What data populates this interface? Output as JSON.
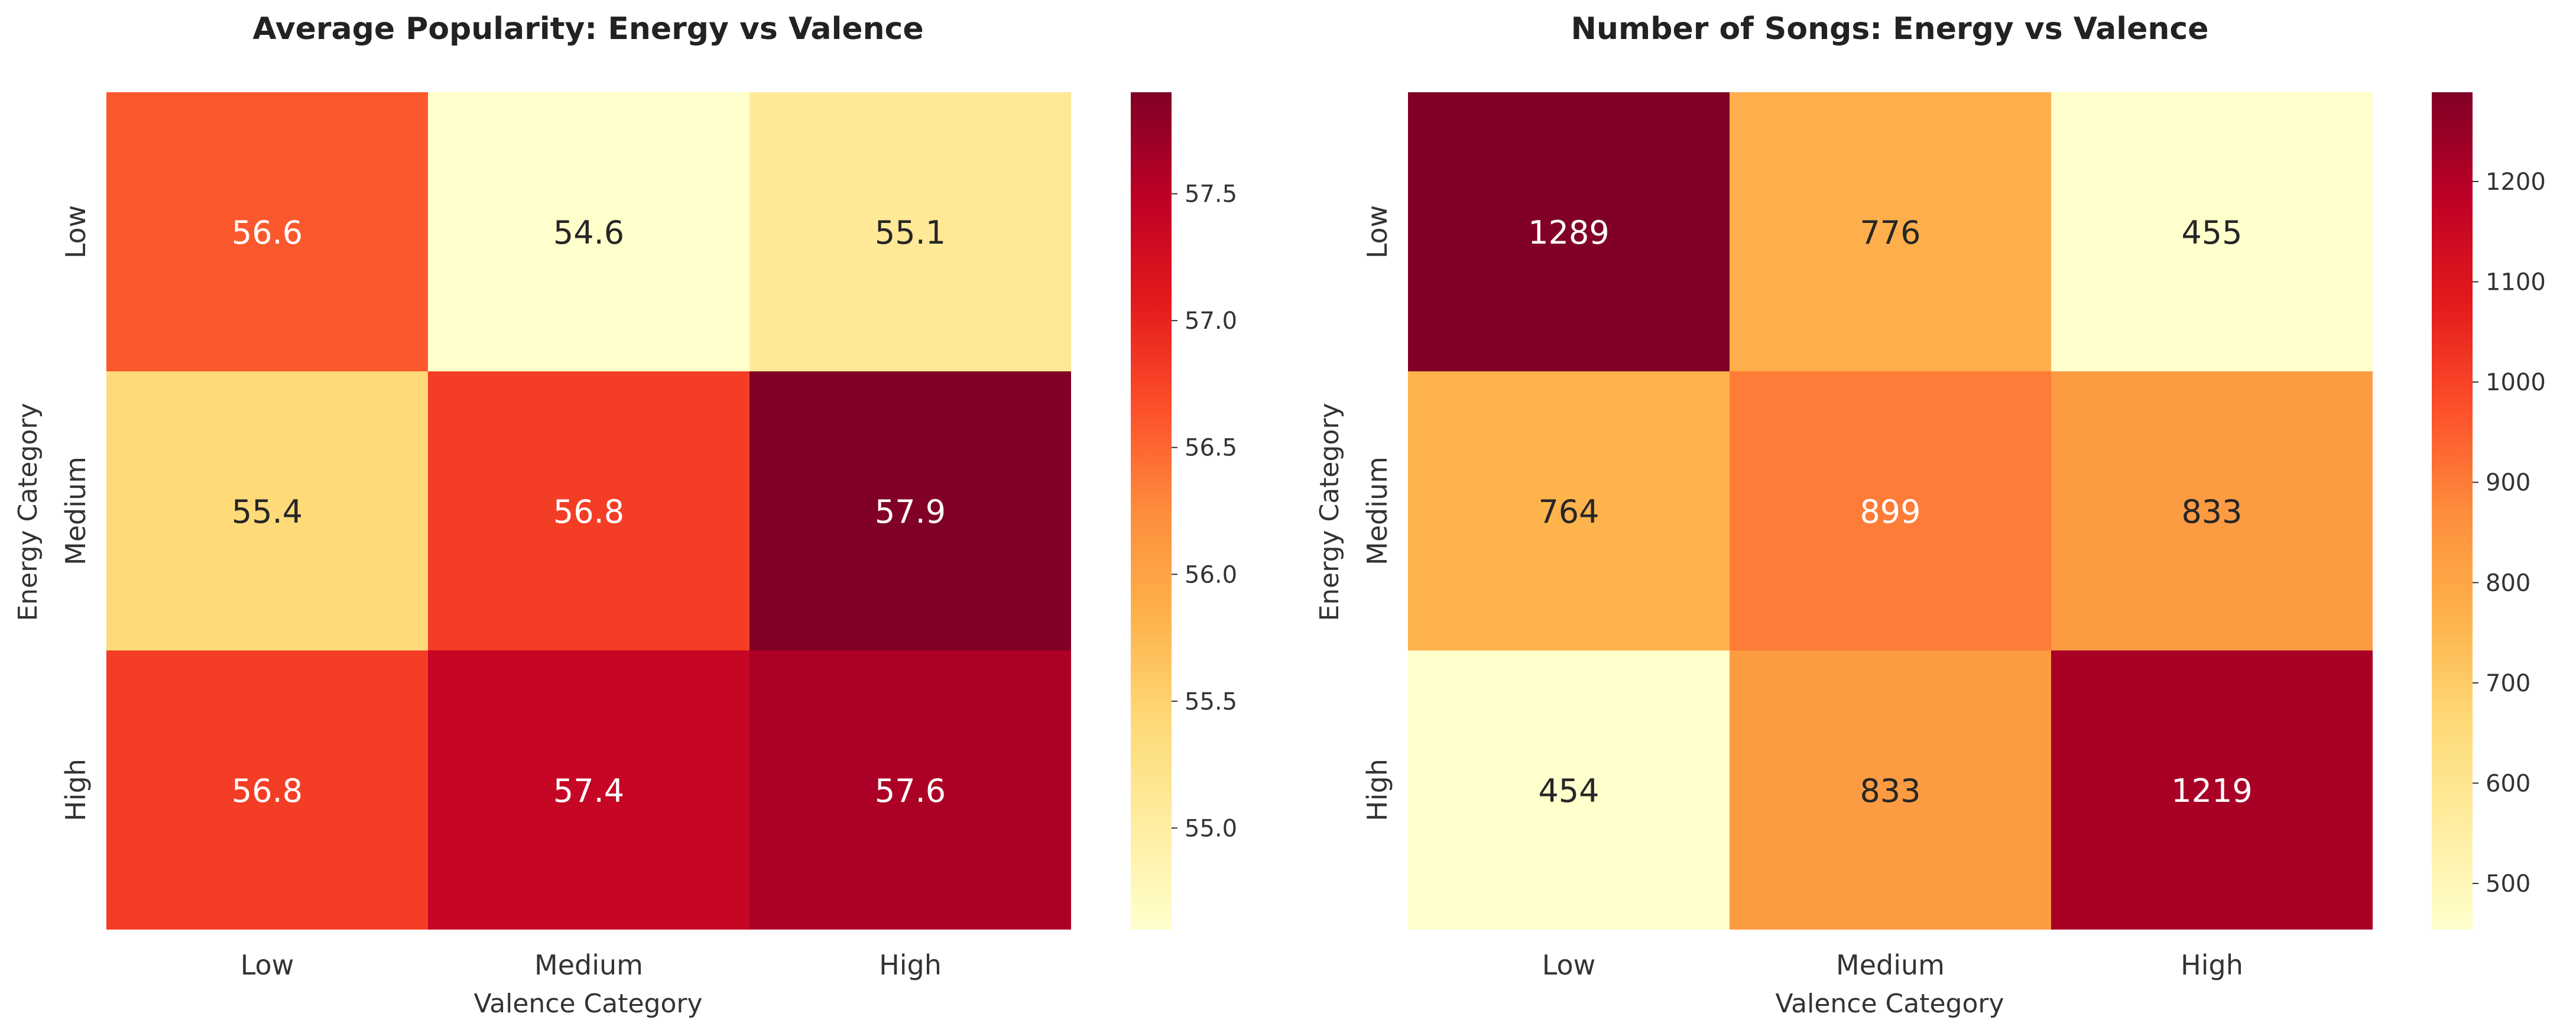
{
  "chart_data": [
    {
      "type": "heatmap",
      "title": "Average Popularity: Energy vs Valence",
      "xlabel": "Valence Category",
      "ylabel": "Energy Category",
      "x_categories": [
        "Low",
        "Medium",
        "High"
      ],
      "y_categories": [
        "Low",
        "Medium",
        "High"
      ],
      "values": [
        [
          56.6,
          54.6,
          55.1
        ],
        [
          55.4,
          56.8,
          57.9
        ],
        [
          56.8,
          57.4,
          57.6
        ]
      ],
      "value_labels": [
        [
          "56.6",
          "54.6",
          "55.1"
        ],
        [
          "55.4",
          "56.8",
          "57.9"
        ],
        [
          "56.8",
          "57.4",
          "57.6"
        ]
      ],
      "colormap": "YlOrRd",
      "vmin": 54.6,
      "vmax": 57.9,
      "colorbar_ticks": [
        55.0,
        55.5,
        56.0,
        56.5,
        57.0,
        57.5
      ],
      "colorbar_tick_labels": [
        "55.0",
        "55.5",
        "56.0",
        "56.5",
        "57.0",
        "57.5"
      ]
    },
    {
      "type": "heatmap",
      "title": "Number of Songs: Energy vs Valence",
      "xlabel": "Valence Category",
      "ylabel": "Energy Category",
      "x_categories": [
        "Low",
        "Medium",
        "High"
      ],
      "y_categories": [
        "Low",
        "Medium",
        "High"
      ],
      "values": [
        [
          1289,
          776,
          455
        ],
        [
          764,
          899,
          833
        ],
        [
          454,
          833,
          1219
        ]
      ],
      "value_labels": [
        [
          "1289",
          "776",
          "455"
        ],
        [
          "764",
          "899",
          "833"
        ],
        [
          "454",
          "833",
          "1219"
        ]
      ],
      "colormap": "YlOrRd",
      "vmin": 454,
      "vmax": 1289,
      "colorbar_ticks": [
        500,
        600,
        700,
        800,
        900,
        1000,
        1100,
        1200
      ],
      "colorbar_tick_labels": [
        "500",
        "600",
        "700",
        "800",
        "900",
        "1000",
        "1100",
        "1200"
      ]
    }
  ]
}
